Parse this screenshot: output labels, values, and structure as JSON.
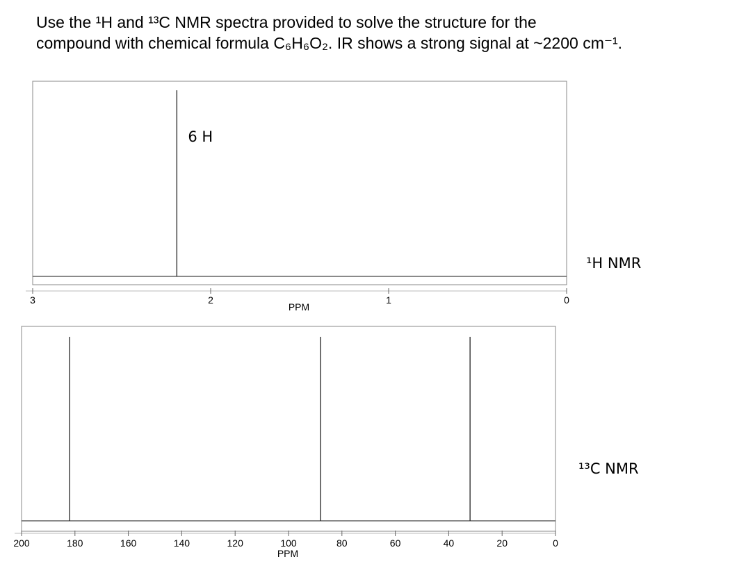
{
  "question": [
    "Use the ¹H and ¹³C NMR spectra provided to solve the structure for the",
    "compound with chemical formula C₆H₆O₂. IR shows a strong signal at ~2200 cm⁻¹."
  ],
  "chart_data": [
    {
      "type": "spectrum",
      "label": "¹H NMR",
      "xlabel": "PPM",
      "xlim": [
        3,
        0
      ],
      "xticks": [
        3,
        2,
        1,
        0
      ],
      "x": [
        2.19
      ],
      "annotations": [
        "6 H"
      ]
    },
    {
      "type": "spectrum",
      "label": "¹³C NMR",
      "xlabel": "PPM",
      "xlim": [
        200,
        0
      ],
      "xticks": [
        200,
        180,
        160,
        140,
        120,
        100,
        80,
        60,
        40,
        20,
        0
      ],
      "x": [
        182,
        88,
        32
      ]
    }
  ]
}
